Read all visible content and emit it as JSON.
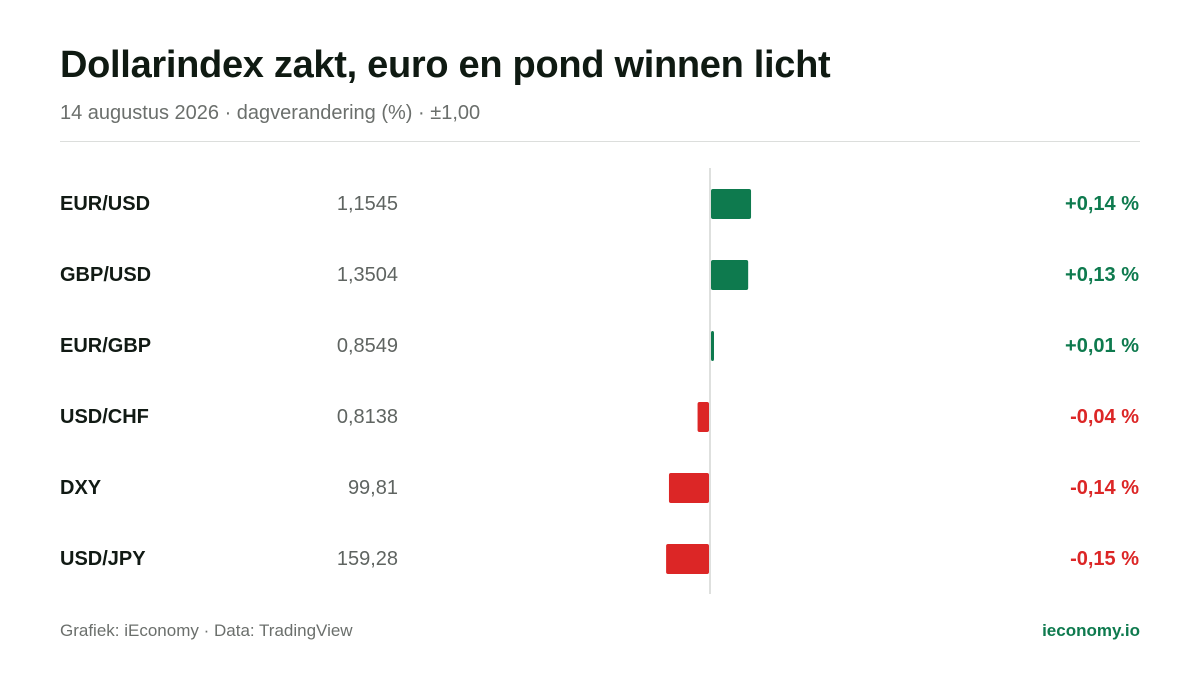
{
  "header": {
    "title": "Dollarindex zakt, euro en pond winnen licht",
    "subtitle": "14 augustus 2026 · dagverandering (%) · ±1,00"
  },
  "footer": {
    "source": "Grafiek: iEconomy · Data: TradingView",
    "brand": "ieconomy.io"
  },
  "colors": {
    "positive": "#0e7a4e",
    "negative": "#dc2626",
    "axis": "#d4d6d4"
  },
  "chart_data": {
    "type": "bar",
    "orientation": "horizontal",
    "categories": [
      "EUR/USD",
      "GBP/USD",
      "EUR/GBP",
      "USD/CHF",
      "DXY",
      "USD/JPY"
    ],
    "rates": [
      "1,1545",
      "1,3504",
      "0,8549",
      "0,8138",
      "99,81",
      "159,28"
    ],
    "values": [
      0.14,
      0.13,
      0.01,
      -0.04,
      -0.14,
      -0.15
    ],
    "value_labels": [
      "+0,14 %",
      "+0,13 %",
      "+0,01 %",
      "-0,04 %",
      "-0,14 %",
      "-0,15 %"
    ],
    "xlim": [
      -1,
      1
    ],
    "title": "Dollarindex zakt, euro en pond winnen licht",
    "subtitle": "14 augustus 2026 · dagverandering (%) · ±1,00",
    "grid": false,
    "legend": "none"
  }
}
